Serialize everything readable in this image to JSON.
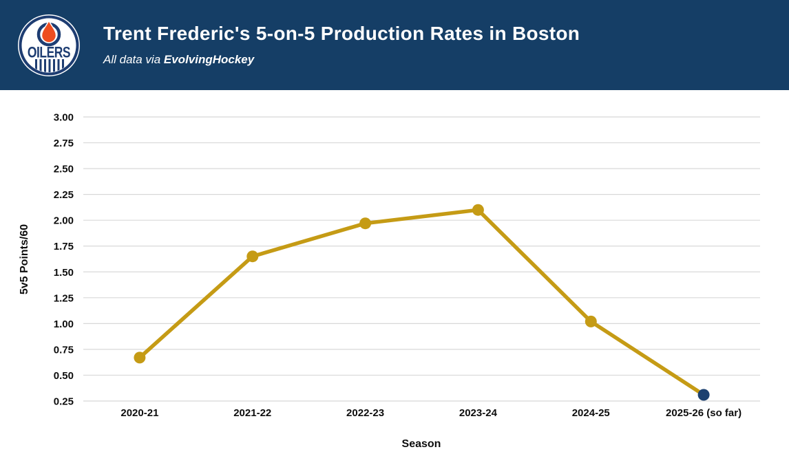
{
  "header": {
    "title": "Trent Frederic's 5-on-5 Production Rates in Boston",
    "subtitle_prefix": "All data via ",
    "subtitle_brand": "EvolvingHockey",
    "logo_text": "OILERS",
    "bg_color": "#153e66"
  },
  "chart_data": {
    "type": "line",
    "title": "Trent Frederic's 5-on-5 Production Rates in Boston",
    "categories": [
      "2020-21",
      "2021-22",
      "2022-23",
      "2023-24",
      "2024-25",
      "2025-26 (so far)"
    ],
    "series": [
      {
        "name": "5v5 Points/60",
        "values": [
          0.67,
          1.65,
          1.97,
          2.1,
          1.02,
          0.31
        ]
      }
    ],
    "xlabel": "Season",
    "ylabel": "5v5 Points/60",
    "ylim": [
      0.25,
      3.0
    ],
    "yticks": [
      0.25,
      0.5,
      0.75,
      1.0,
      1.25,
      1.5,
      1.75,
      2.0,
      2.25,
      2.5,
      2.75,
      3.0
    ],
    "ytick_decimals": 2,
    "grid": true,
    "legend": "none",
    "colors": {
      "line": "#c59b15",
      "marker": "#c59b15",
      "current_season_marker": "#1c4170",
      "gridline": "#d8d8d8",
      "text": "#0d0d0d"
    }
  }
}
